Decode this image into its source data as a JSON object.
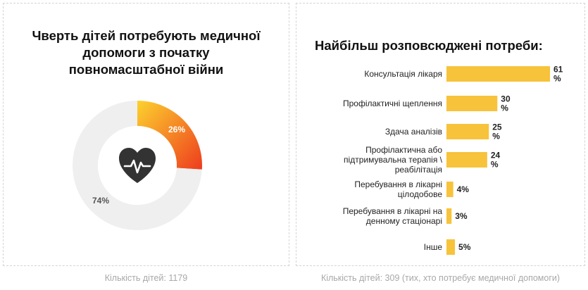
{
  "left_panel": {
    "title_lines": [
      "Чверть дітей потребують медичної",
      "допомоги з початку",
      "повномасштабної війни"
    ],
    "caption": "Кількість дітей: 1179"
  },
  "right_panel": {
    "title": "Найбільш розповсюджені потреби:",
    "caption": "Кількість дітей: 309 (тих, хто потребує медичної допомоги)"
  },
  "icons": {
    "center_icon": "heart-pulse-icon"
  },
  "colors": {
    "bar": "#f7c33b",
    "donut_gradient_start": "#fcd22e",
    "donut_gradient_end": "#ee3c1e",
    "donut_rest": "#efefef",
    "icon_circle": "#ffffff",
    "icon": "#333333"
  },
  "chart_data": [
    {
      "type": "pie",
      "labels": [
        "26%",
        "74%"
      ],
      "values": [
        26,
        74
      ]
    },
    {
      "type": "bar",
      "orientation": "horizontal",
      "categories": [
        [
          "Консультація лікаря"
        ],
        [
          "Профілактичні щеплення"
        ],
        [
          "Здача аналізів"
        ],
        [
          "Профілактична або",
          "підтримувальна терапія \\",
          "реабілітація"
        ],
        [
          "Перебування в лікарні",
          "цілодобове"
        ],
        [
          "Перебування в лікарні на",
          "денному стаціонарі"
        ],
        [
          "Інше"
        ]
      ],
      "values": [
        61,
        30,
        25,
        24,
        4,
        3,
        5
      ],
      "value_labels": [
        [
          "61",
          "%"
        ],
        [
          "30",
          "%"
        ],
        [
          "25",
          "%"
        ],
        [
          "24",
          "%"
        ],
        [
          "4%"
        ],
        [
          "3%"
        ],
        [
          "5%"
        ]
      ]
    }
  ]
}
